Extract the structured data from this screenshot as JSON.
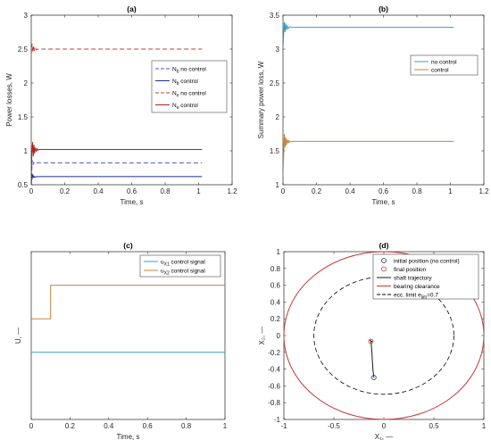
{
  "colors": {
    "blue": "#4060c8",
    "red": "#c83838",
    "navy": "#1c2e8c",
    "darkred": "#b02020",
    "teal": "#3a9cbf",
    "orange": "#c8843c",
    "axis": "#262626",
    "black": "#000000"
  },
  "chart_data": [
    {
      "type": "line",
      "title": "(a)",
      "xlabel": "Time, s",
      "ylabel": "Power losses, W",
      "xlim": [
        0,
        1.2
      ],
      "ylim": [
        0.5,
        3
      ],
      "xticks": [
        "0",
        "0.2",
        "0.4",
        "0.6",
        "0.8",
        "1",
        "1.2"
      ],
      "yticks": [
        "0.5",
        "1",
        "1.5",
        "2",
        "2.5",
        "3"
      ],
      "legend_position": "right",
      "series": [
        {
          "name": "N_b no control",
          "label_base": "N",
          "label_sub": "b",
          "label_rest": " no control",
          "style": "dashed",
          "color": "#4060c8",
          "x": [
            0,
            0.003,
            0.006,
            0.01,
            0.015,
            0.02,
            0.03,
            1.02
          ],
          "y": [
            0.5,
            0.7,
            0.86,
            0.79,
            0.83,
            0.81,
            0.82,
            0.82
          ]
        },
        {
          "name": "N_b control",
          "label_base": "N",
          "label_sub": "b",
          "label_rest": " control",
          "style": "solid",
          "color": "#1c2e8c",
          "x": [
            0,
            0.003,
            0.006,
            0.01,
            0.015,
            0.02,
            0.03,
            1.02
          ],
          "y": [
            0.5,
            0.62,
            0.66,
            0.6,
            0.63,
            0.61,
            0.62,
            0.62
          ]
        },
        {
          "name": "N_e no control",
          "label_base": "N",
          "label_sub": "e",
          "label_rest": " no control",
          "style": "dashed",
          "color": "#c83838",
          "x": [
            0,
            0.005,
            0.01,
            0.015,
            0.02,
            0.025,
            0.03,
            0.04,
            1.02
          ],
          "y": [
            2.42,
            2.58,
            2.45,
            2.55,
            2.47,
            2.52,
            2.49,
            2.5,
            2.5
          ]
        },
        {
          "name": "N_e control",
          "label_base": "N",
          "label_sub": "e",
          "label_rest": " control",
          "style": "solid",
          "color": "#b02020",
          "x": [
            0,
            0.004,
            0.008,
            0.012,
            0.016,
            0.02,
            0.025,
            0.03,
            0.035,
            0.04,
            0.05,
            1.02
          ],
          "y": [
            0.62,
            0.98,
            1.13,
            0.92,
            1.09,
            0.96,
            1.05,
            0.99,
            1.03,
            1.01,
            1.02,
            1.02
          ]
        }
      ]
    },
    {
      "type": "line",
      "title": "(b)",
      "xlabel": "Time, s",
      "ylabel": "Summary power loss, W",
      "xlim": [
        0,
        1.2
      ],
      "ylim": [
        1,
        3.5
      ],
      "xticks": [
        "0",
        "0.2",
        "0.4",
        "0.6",
        "0.8",
        "1",
        "1.2"
      ],
      "yticks": [
        "1",
        "1.5",
        "2",
        "2.5",
        "3",
        "3.5"
      ],
      "legend_position": "top-right",
      "series": [
        {
          "name": "no control",
          "style": "solid",
          "color": "#3a9cbf",
          "x": [
            0,
            0.004,
            0.008,
            0.012,
            0.016,
            0.02,
            0.025,
            0.03,
            0.04,
            0.05,
            1.02
          ],
          "y": [
            3.0,
            3.22,
            3.4,
            3.25,
            3.38,
            3.28,
            3.35,
            3.3,
            3.33,
            3.32,
            3.32
          ]
        },
        {
          "name": "control",
          "style": "solid",
          "color": "#c8843c",
          "x": [
            0,
            0.004,
            0.008,
            0.012,
            0.016,
            0.02,
            0.025,
            0.03,
            0.035,
            0.04,
            0.05,
            1.02
          ],
          "y": [
            1.12,
            1.45,
            1.75,
            1.55,
            1.7,
            1.58,
            1.67,
            1.61,
            1.65,
            1.63,
            1.64,
            1.64
          ]
        }
      ]
    },
    {
      "type": "line",
      "title": "(c)",
      "xlabel": "Time, s",
      "ylabel": "U, —",
      "xlim": [
        0,
        1
      ],
      "ylim": [
        -0.1,
        0.15
      ],
      "xticks": [
        "0",
        "0.2",
        "0.4",
        "0.6",
        "0.8",
        "1"
      ],
      "yticks": [],
      "legend_position": "top-right",
      "series": [
        {
          "name": "u_X1 control signal",
          "label_base": "u",
          "label_sub": "X1",
          "label_rest": " control signal",
          "style": "solid",
          "color": "#3a9cbf",
          "x": [
            0,
            1
          ],
          "y": [
            0,
            0
          ]
        },
        {
          "name": "u_X2 control signal",
          "label_base": "u",
          "label_sub": "X2",
          "label_rest": " control signal",
          "style": "solid",
          "color": "#c8843c",
          "x": [
            0,
            0.1,
            0.1,
            1
          ],
          "y": [
            0.05,
            0.05,
            0.1,
            0.1
          ]
        }
      ]
    },
    {
      "type": "scatter",
      "title": "(d)",
      "xlabel": "X₁, —",
      "ylabel": "X₂, —",
      "xlim": [
        -1,
        1
      ],
      "ylim": [
        -1,
        1
      ],
      "xticks": [
        "-1",
        "-0.5",
        "0",
        "0.5",
        "1"
      ],
      "yticks": [
        "-1",
        "-0.8",
        "-0.6",
        "-0.4",
        "-0.2",
        "0",
        "0.2",
        "0.4",
        "0.6",
        "0.8",
        "1"
      ],
      "legend_position": "top-right",
      "initial_position": [
        -0.1,
        -0.5
      ],
      "final_position": [
        -0.13,
        -0.07
      ],
      "trajectory": {
        "x": [
          -0.1,
          -0.11,
          -0.115,
          -0.12,
          -0.125,
          -0.13,
          -0.12,
          -0.135,
          -0.13
        ],
        "y": [
          -0.5,
          -0.4,
          -0.3,
          -0.2,
          -0.12,
          -0.08,
          -0.07,
          -0.06,
          -0.07
        ]
      },
      "bearing_clearance_radius": 1,
      "ecc_limit_radius": 0.7,
      "legend": [
        {
          "name": "initial position (no control)",
          "kind": "marker",
          "color": "#1c2e8c"
        },
        {
          "name": "final position",
          "kind": "marker",
          "color": "#c83838"
        },
        {
          "name": "shaft trajectory",
          "kind": "line",
          "color": "#1a1a1a"
        },
        {
          "name": "bearing clearance",
          "kind": "line",
          "color": "#c83838"
        },
        {
          "name": "ecc. limit e_lim=0.7",
          "kind": "dashed",
          "color": "#000000",
          "label_base": "ecc. limit e",
          "label_sub": "lim",
          "label_rest": "=0.7"
        }
      ]
    }
  ]
}
